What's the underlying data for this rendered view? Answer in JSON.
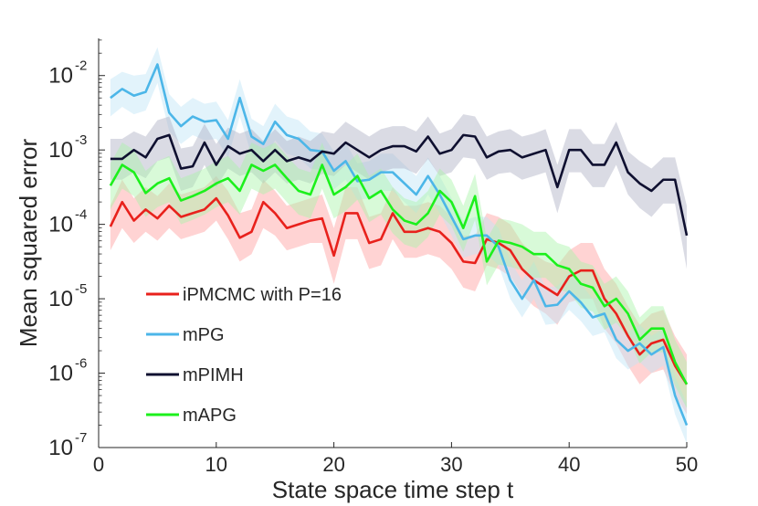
{
  "chart_data": {
    "type": "line",
    "title": "",
    "xlabel": "State space time step t",
    "ylabel": "Mean squared error",
    "xlim": [
      0,
      50
    ],
    "ylim_log10": [
      -7,
      -1.5
    ],
    "y_scale": "log",
    "x_ticks": [
      0,
      10,
      20,
      30,
      40,
      50
    ],
    "y_ticks": [
      {
        "exp": -7,
        "base": "10",
        "label": "-7"
      },
      {
        "exp": -6,
        "base": "10",
        "label": "-6"
      },
      {
        "exp": -5,
        "base": "10",
        "label": "-5"
      },
      {
        "exp": -4,
        "base": "10",
        "label": "-4"
      },
      {
        "exp": -3,
        "base": "10",
        "label": "-3"
      },
      {
        "exp": -2,
        "base": "10",
        "label": "-2"
      }
    ],
    "grid": false,
    "legend_position": "lower-left",
    "x": [
      1,
      2,
      3,
      4,
      5,
      6,
      7,
      8,
      9,
      10,
      11,
      12,
      13,
      14,
      15,
      16,
      17,
      18,
      19,
      20,
      21,
      22,
      23,
      24,
      25,
      26,
      27,
      28,
      29,
      30,
      31,
      32,
      33,
      34,
      35,
      36,
      37,
      38,
      39,
      40,
      41,
      42,
      43,
      44,
      45,
      46,
      47,
      48,
      49,
      50
    ],
    "series": [
      {
        "name": "iPMCMC with P=16",
        "color": "#e8211c",
        "band_color": "#ff9d9d",
        "log10_values": [
          -4.03,
          -3.7,
          -3.95,
          -3.8,
          -3.92,
          -3.75,
          -3.9,
          -3.85,
          -3.8,
          -3.65,
          -3.88,
          -4.18,
          -4.1,
          -3.7,
          -3.85,
          -4.05,
          -4.0,
          -3.95,
          -3.92,
          -4.42,
          -3.85,
          -3.85,
          -4.25,
          -4.2,
          -3.85,
          -4.1,
          -4.1,
          -4.05,
          -4.1,
          -4.25,
          -4.5,
          -4.52,
          -4.2,
          -4.25,
          -4.35,
          -4.6,
          -4.75,
          -4.85,
          -4.95,
          -4.7,
          -4.62,
          -4.62,
          -5.0,
          -5.2,
          -5.5,
          -5.75,
          -5.6,
          -5.55,
          -5.9,
          -6.15
        ],
        "log10_band": [
          [
            -4.35,
            -3.75
          ],
          [
            -4.05,
            -3.4
          ],
          [
            -4.25,
            -3.65
          ],
          [
            -4.1,
            -3.5
          ],
          [
            -4.22,
            -3.62
          ],
          [
            -4.05,
            -3.45
          ],
          [
            -4.2,
            -3.6
          ],
          [
            -4.15,
            -3.55
          ],
          [
            -4.1,
            -3.5
          ],
          [
            -3.95,
            -3.35
          ],
          [
            -4.2,
            -3.55
          ],
          [
            -4.5,
            -3.85
          ],
          [
            -4.4,
            -3.8
          ],
          [
            -4.05,
            -3.4
          ],
          [
            -4.15,
            -3.55
          ],
          [
            -4.35,
            -3.75
          ],
          [
            -4.3,
            -3.7
          ],
          [
            -4.25,
            -3.65
          ],
          [
            -4.25,
            -3.6
          ],
          [
            -4.8,
            -4.05
          ],
          [
            -4.2,
            -3.5
          ],
          [
            -4.2,
            -3.5
          ],
          [
            -4.6,
            -3.9
          ],
          [
            -4.55,
            -3.85
          ],
          [
            -4.2,
            -3.5
          ],
          [
            -4.45,
            -3.75
          ],
          [
            -4.45,
            -3.75
          ],
          [
            -4.4,
            -3.7
          ],
          [
            -4.45,
            -3.75
          ],
          [
            -4.6,
            -3.9
          ],
          [
            -4.85,
            -4.15
          ],
          [
            -4.9,
            -4.15
          ],
          [
            -4.55,
            -3.85
          ],
          [
            -4.6,
            -3.9
          ],
          [
            -4.7,
            -4.0
          ],
          [
            -4.95,
            -4.25
          ],
          [
            -5.1,
            -4.4
          ],
          [
            -5.2,
            -4.5
          ],
          [
            -5.35,
            -4.55
          ],
          [
            -5.05,
            -4.35
          ],
          [
            -5.0,
            -4.25
          ],
          [
            -5.0,
            -4.25
          ],
          [
            -5.4,
            -4.6
          ],
          [
            -5.6,
            -4.8
          ],
          [
            -5.9,
            -5.1
          ],
          [
            -6.15,
            -5.35
          ],
          [
            -6.0,
            -5.2
          ],
          [
            -5.95,
            -5.15
          ],
          [
            -6.3,
            -5.5
          ],
          [
            -6.55,
            -5.75
          ]
        ]
      },
      {
        "name": "mPG",
        "color": "#4cb6e8",
        "band_color": "#bfe4f7",
        "log10_values": [
          -2.3,
          -2.18,
          -2.27,
          -2.22,
          -1.85,
          -2.5,
          -2.68,
          -2.55,
          -2.62,
          -2.6,
          -2.85,
          -2.3,
          -2.82,
          -2.92,
          -2.62,
          -2.8,
          -2.85,
          -3.0,
          -3.02,
          -3.28,
          -3.15,
          -3.42,
          -3.4,
          -3.3,
          -3.3,
          -3.45,
          -3.6,
          -3.35,
          -3.6,
          -3.9,
          -4.2,
          -4.15,
          -4.15,
          -4.3,
          -4.75,
          -5.0,
          -4.75,
          -5.1,
          -5.08,
          -4.9,
          -5.05,
          -5.25,
          -5.2,
          -5.55,
          -5.7,
          -5.6,
          -5.75,
          -5.65,
          -6.3,
          -6.7
        ],
        "log10_band": [
          [
            -2.55,
            -2.05
          ],
          [
            -2.42,
            -1.95
          ],
          [
            -2.52,
            -2.0
          ],
          [
            -2.47,
            -1.98
          ],
          [
            -2.1,
            -1.62
          ],
          [
            -2.75,
            -2.25
          ],
          [
            -2.92,
            -2.42
          ],
          [
            -2.8,
            -2.3
          ],
          [
            -2.87,
            -2.38
          ],
          [
            -2.85,
            -2.35
          ],
          [
            -3.1,
            -2.6
          ],
          [
            -2.55,
            -2.05
          ],
          [
            -3.07,
            -2.58
          ],
          [
            -3.17,
            -2.68
          ],
          [
            -2.87,
            -2.38
          ],
          [
            -3.05,
            -2.55
          ],
          [
            -3.1,
            -2.6
          ],
          [
            -3.25,
            -2.75
          ],
          [
            -3.27,
            -2.78
          ],
          [
            -3.53,
            -3.02
          ],
          [
            -3.4,
            -2.9
          ],
          [
            -3.67,
            -3.18
          ],
          [
            -3.65,
            -3.15
          ],
          [
            -3.55,
            -3.05
          ],
          [
            -3.55,
            -3.05
          ],
          [
            -3.7,
            -3.2
          ],
          [
            -3.85,
            -3.35
          ],
          [
            -3.6,
            -3.1
          ],
          [
            -3.85,
            -3.35
          ],
          [
            -4.15,
            -3.65
          ],
          [
            -4.45,
            -3.95
          ],
          [
            -4.4,
            -3.9
          ],
          [
            -4.4,
            -3.9
          ],
          [
            -4.55,
            -4.05
          ],
          [
            -5.0,
            -4.5
          ],
          [
            -5.25,
            -4.75
          ],
          [
            -5.0,
            -4.5
          ],
          [
            -5.35,
            -4.85
          ],
          [
            -5.33,
            -4.83
          ],
          [
            -5.15,
            -4.65
          ],
          [
            -5.3,
            -4.8
          ],
          [
            -5.5,
            -5.0
          ],
          [
            -5.45,
            -4.95
          ],
          [
            -5.8,
            -5.3
          ],
          [
            -5.95,
            -5.45
          ],
          [
            -5.85,
            -5.35
          ],
          [
            -6.0,
            -5.5
          ],
          [
            -5.9,
            -5.4
          ],
          [
            -6.55,
            -6.05
          ],
          [
            -6.95,
            -6.4
          ]
        ]
      },
      {
        "name": "mPIMH",
        "color": "#0f1030",
        "band_color": "#aeb0c4",
        "log10_values": [
          -3.12,
          -3.12,
          -3.0,
          -3.1,
          -2.85,
          -2.8,
          -3.25,
          -3.22,
          -2.9,
          -3.2,
          -2.95,
          -3.05,
          -3.0,
          -3.15,
          -3.0,
          -3.15,
          -3.1,
          -3.15,
          -3.02,
          -3.05,
          -2.9,
          -3.0,
          -3.1,
          -3.0,
          -2.95,
          -2.95,
          -3.02,
          -2.82,
          -3.05,
          -3.0,
          -2.8,
          -2.82,
          -3.1,
          -3.02,
          -3.0,
          -3.1,
          -3.05,
          -3.0,
          -3.5,
          -3.0,
          -3.0,
          -3.2,
          -3.2,
          -2.9,
          -3.3,
          -3.45,
          -3.55,
          -3.4,
          -3.4,
          -4.15
        ],
        "log10_band": [
          [
            -3.4,
            -2.85
          ],
          [
            -3.4,
            -2.85
          ],
          [
            -3.3,
            -2.75
          ],
          [
            -3.38,
            -2.82
          ],
          [
            -3.15,
            -2.6
          ],
          [
            -3.1,
            -2.55
          ],
          [
            -3.55,
            -2.98
          ],
          [
            -3.5,
            -2.95
          ],
          [
            -3.2,
            -2.65
          ],
          [
            -3.5,
            -2.92
          ],
          [
            -3.25,
            -2.7
          ],
          [
            -3.35,
            -2.78
          ],
          [
            -3.3,
            -2.72
          ],
          [
            -3.45,
            -2.88
          ],
          [
            -3.3,
            -2.72
          ],
          [
            -3.45,
            -2.88
          ],
          [
            -3.4,
            -2.82
          ],
          [
            -3.45,
            -2.88
          ],
          [
            -3.32,
            -2.75
          ],
          [
            -3.35,
            -2.78
          ],
          [
            -3.2,
            -2.62
          ],
          [
            -3.3,
            -2.72
          ],
          [
            -3.4,
            -2.82
          ],
          [
            -3.3,
            -2.72
          ],
          [
            -3.25,
            -2.68
          ],
          [
            -3.25,
            -2.68
          ],
          [
            -3.32,
            -2.75
          ],
          [
            -3.12,
            -2.55
          ],
          [
            -3.35,
            -2.78
          ],
          [
            -3.3,
            -2.72
          ],
          [
            -3.1,
            -2.52
          ],
          [
            -3.12,
            -2.55
          ],
          [
            -3.4,
            -2.82
          ],
          [
            -3.32,
            -2.75
          ],
          [
            -3.3,
            -2.72
          ],
          [
            -3.4,
            -2.82
          ],
          [
            -3.35,
            -2.78
          ],
          [
            -3.3,
            -2.72
          ],
          [
            -3.85,
            -3.2
          ],
          [
            -3.3,
            -2.72
          ],
          [
            -3.3,
            -2.72
          ],
          [
            -3.5,
            -2.92
          ],
          [
            -3.5,
            -2.92
          ],
          [
            -3.2,
            -2.62
          ],
          [
            -3.6,
            -3.02
          ],
          [
            -3.78,
            -3.15
          ],
          [
            -3.9,
            -3.25
          ],
          [
            -3.72,
            -3.1
          ],
          [
            -3.72,
            -3.1
          ],
          [
            -4.6,
            -3.75
          ]
        ]
      },
      {
        "name": "mAPG",
        "color": "#1cf01c",
        "band_color": "#a8f5a8",
        "log10_values": [
          -3.48,
          -3.2,
          -3.3,
          -3.58,
          -3.45,
          -3.38,
          -3.68,
          -3.62,
          -3.55,
          -3.45,
          -3.38,
          -3.55,
          -3.2,
          -3.28,
          -3.2,
          -3.38,
          -3.55,
          -3.6,
          -3.2,
          -3.6,
          -3.5,
          -3.35,
          -3.65,
          -3.55,
          -3.8,
          -3.95,
          -4.0,
          -3.85,
          -3.55,
          -3.7,
          -4.05,
          -3.62,
          -4.5,
          -4.22,
          -4.25,
          -4.3,
          -4.4,
          -4.4,
          -4.55,
          -4.6,
          -4.8,
          -4.85,
          -5.1,
          -5.0,
          -5.2,
          -5.55,
          -5.4,
          -5.4,
          -5.85,
          -6.15
        ],
        "log10_band": [
          [
            -3.8,
            -3.18
          ],
          [
            -3.52,
            -2.9
          ],
          [
            -3.62,
            -3.0
          ],
          [
            -3.9,
            -3.28
          ],
          [
            -3.77,
            -3.15
          ],
          [
            -3.7,
            -3.08
          ],
          [
            -4.0,
            -3.38
          ],
          [
            -3.94,
            -3.32
          ],
          [
            -3.87,
            -3.25
          ],
          [
            -3.77,
            -3.15
          ],
          [
            -3.7,
            -3.08
          ],
          [
            -3.87,
            -3.25
          ],
          [
            -3.52,
            -2.9
          ],
          [
            -3.6,
            -2.98
          ],
          [
            -3.52,
            -2.9
          ],
          [
            -3.7,
            -3.08
          ],
          [
            -3.87,
            -3.25
          ],
          [
            -3.92,
            -3.3
          ],
          [
            -3.52,
            -2.9
          ],
          [
            -3.92,
            -3.3
          ],
          [
            -3.82,
            -3.2
          ],
          [
            -3.67,
            -3.05
          ],
          [
            -3.97,
            -3.35
          ],
          [
            -3.87,
            -3.25
          ],
          [
            -4.12,
            -3.5
          ],
          [
            -4.27,
            -3.65
          ],
          [
            -4.32,
            -3.7
          ],
          [
            -4.17,
            -3.55
          ],
          [
            -3.87,
            -3.25
          ],
          [
            -4.02,
            -3.4
          ],
          [
            -4.37,
            -3.75
          ],
          [
            -3.94,
            -3.32
          ],
          [
            -4.82,
            -4.2
          ],
          [
            -4.54,
            -3.92
          ],
          [
            -4.57,
            -3.95
          ],
          [
            -4.62,
            -4.0
          ],
          [
            -4.72,
            -4.1
          ],
          [
            -4.72,
            -4.1
          ],
          [
            -4.87,
            -4.25
          ],
          [
            -4.92,
            -4.3
          ],
          [
            -5.12,
            -4.5
          ],
          [
            -5.17,
            -4.55
          ],
          [
            -5.42,
            -4.8
          ],
          [
            -5.32,
            -4.7
          ],
          [
            -5.52,
            -4.9
          ],
          [
            -5.87,
            -5.25
          ],
          [
            -5.72,
            -5.1
          ],
          [
            -5.72,
            -5.1
          ],
          [
            -6.17,
            -5.55
          ],
          [
            -6.47,
            -5.85
          ]
        ]
      }
    ]
  }
}
